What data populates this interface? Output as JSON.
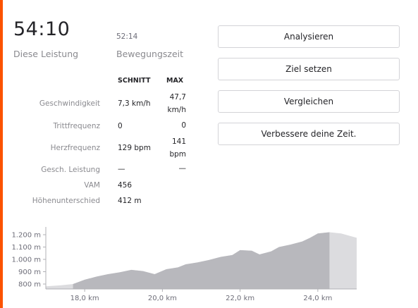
{
  "summary": {
    "elapsed_time": "54:10",
    "elapsed_label": "Diese Leistung",
    "moving_time": "52:14",
    "moving_label": "Bewegungszeit"
  },
  "stats": {
    "headers": {
      "avg": "SCHNITT",
      "max": "MAX"
    },
    "rows": [
      {
        "label": "Geschwindigkeit",
        "avg": "7,3 km/h",
        "max": "47,7 km/h"
      },
      {
        "label": "Trittfrequenz",
        "avg": "0",
        "max": "0"
      },
      {
        "label": "Herzfrequenz",
        "avg": "129 bpm",
        "max": "141 bpm"
      },
      {
        "label": "Gesch. Leistung",
        "avg": "—",
        "max": "—"
      },
      {
        "label": "VAM",
        "avg": "456",
        "max": ""
      },
      {
        "label": "Höhenunterschied",
        "avg": "412 m",
        "max": ""
      }
    ]
  },
  "actions": {
    "analyze": "Analysieren",
    "set_goal": "Ziel setzen",
    "compare": "Vergleichen",
    "improve": "Verbessere deine Zeit."
  },
  "chart_data": {
    "type": "area",
    "x": [
      17.0,
      17.4,
      17.7,
      18.0,
      18.3,
      18.6,
      18.9,
      19.2,
      19.5,
      19.8,
      20.1,
      20.4,
      20.6,
      20.9,
      21.2,
      21.5,
      21.8,
      22.0,
      22.3,
      22.5,
      22.8,
      23.0,
      23.3,
      23.6,
      23.8,
      24.0,
      24.3,
      24.6,
      25.0
    ],
    "y": [
      782,
      790,
      800,
      835,
      860,
      880,
      895,
      915,
      905,
      880,
      920,
      935,
      960,
      975,
      995,
      1020,
      1035,
      1075,
      1070,
      1040,
      1065,
      1100,
      1120,
      1145,
      1175,
      1210,
      1220,
      1210,
      1175
    ],
    "highlight_range": [
      17.7,
      24.3
    ],
    "x_ticks": [
      "18,0 km",
      "20,0 km",
      "22,0 km",
      "24,0 km"
    ],
    "x_tick_values": [
      18.0,
      20.0,
      22.0,
      24.0
    ],
    "y_ticks": [
      "800 m",
      "900 m",
      "1.000 m",
      "1.100 m",
      "1.200 m"
    ],
    "y_tick_values": [
      800,
      900,
      1000,
      1100,
      1200
    ],
    "xlim": [
      17.0,
      25.0
    ],
    "ylim": [
      760,
      1240
    ],
    "colors": {
      "segment": "#b8b8bd",
      "outside": "#dcdcdf",
      "axis": "#b0b0b5"
    }
  }
}
